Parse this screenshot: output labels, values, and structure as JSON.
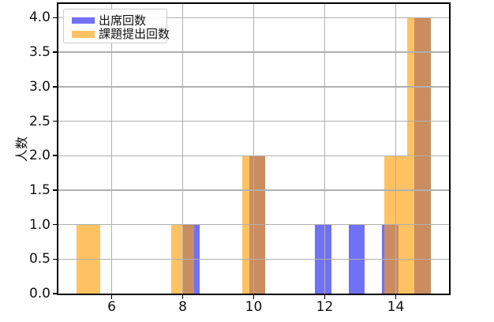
{
  "chart_data": {
    "type": "histogram",
    "title": "",
    "xlabel": "",
    "ylabel": "人数",
    "xlim": [
      4.5,
      15.5
    ],
    "ylim": [
      0,
      4.2
    ],
    "grid": true,
    "grid_color": "#b0b0b0",
    "spine_color": "#000000",
    "text_color": "#111111",
    "legend": {
      "position": "upper-left",
      "border_color": "#cccccc",
      "background": "rgba(255,255,255,0.85)"
    },
    "xticks": {
      "values": [
        6,
        8,
        10,
        12,
        14
      ],
      "labels": [
        "6",
        "8",
        "10",
        "12",
        "14"
      ]
    },
    "yticks": {
      "values": [
        0,
        0.5,
        1,
        1.5,
        2,
        2.5,
        3,
        3.5,
        4
      ],
      "labels": [
        "0.0",
        "0.5",
        "1.0",
        "1.5",
        "2.0",
        "2.5",
        "3.0",
        "3.5",
        "4.0"
      ]
    },
    "series": [
      {
        "id": "attendance",
        "name": "出席回数",
        "fill": "rgba(10,10,240,0.58)",
        "color_on_white": "#7171f6",
        "bin_width": 0.4667,
        "bins": [
          {
            "from": 8.0,
            "to": 8.4667,
            "count": 1
          },
          {
            "from": 9.8667,
            "to": 10.3333,
            "count": 2
          },
          {
            "from": 11.7333,
            "to": 12.2,
            "count": 1
          },
          {
            "from": 12.6667,
            "to": 13.1333,
            "count": 1
          },
          {
            "from": 13.6,
            "to": 14.0667,
            "count": 1
          },
          {
            "from": 14.5333,
            "to": 15.0,
            "count": 4
          }
        ]
      },
      {
        "id": "homework",
        "name": "課題提出回数",
        "fill": "rgba(255,158,8,0.63)",
        "color_on_white": "#ffc263",
        "bin_width": 0.6667,
        "bins": [
          {
            "from": 5.0,
            "to": 5.6667,
            "count": 1
          },
          {
            "from": 7.6667,
            "to": 8.3333,
            "count": 1
          },
          {
            "from": 9.6667,
            "to": 10.3333,
            "count": 2
          },
          {
            "from": 13.6667,
            "to": 14.3333,
            "count": 2
          },
          {
            "from": 14.3333,
            "to": 15.0,
            "count": 4
          }
        ]
      }
    ],
    "overlap_color_on_white": "#ca8d60"
  }
}
